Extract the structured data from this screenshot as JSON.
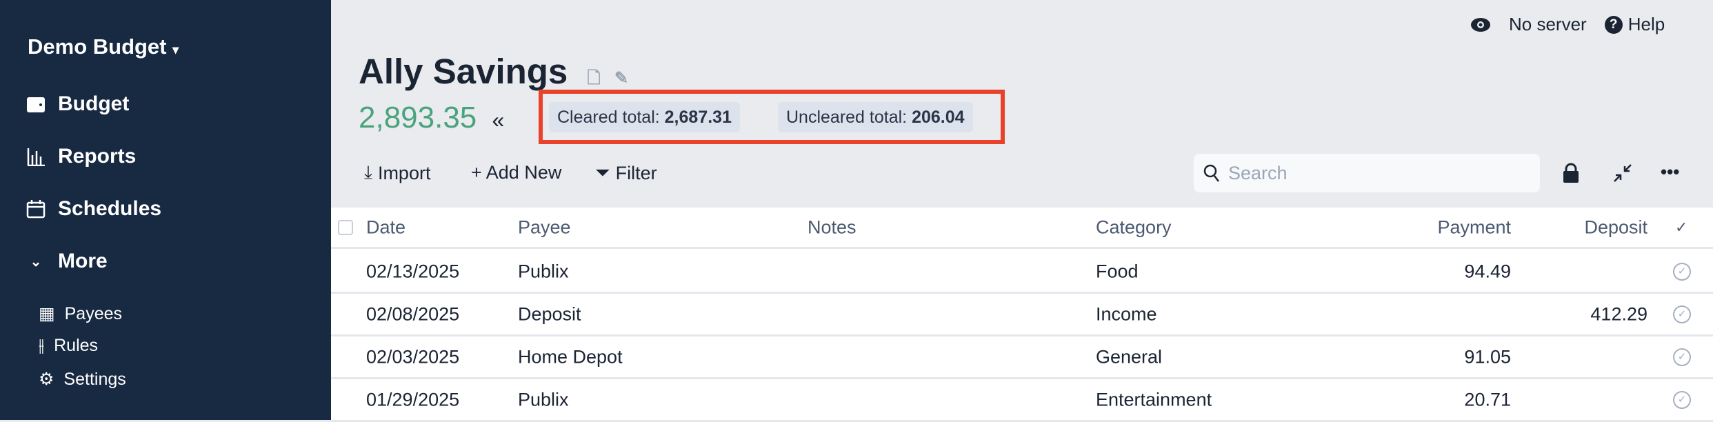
{
  "sidebar": {
    "budget_name": "Demo Budget",
    "items": [
      {
        "label": "Budget",
        "icon": "wallet-icon"
      },
      {
        "label": "Reports",
        "icon": "bar-chart-icon"
      },
      {
        "label": "Schedules",
        "icon": "calendar-icon"
      },
      {
        "label": "More",
        "icon": "chevron-down-icon"
      }
    ],
    "sub_items": [
      {
        "label": "Payees",
        "icon": "store-icon"
      },
      {
        "label": "Rules",
        "icon": "sliders-icon"
      },
      {
        "label": "Settings",
        "icon": "gear-icon"
      }
    ]
  },
  "topbar": {
    "server_status": "No server",
    "help": "Help"
  },
  "account": {
    "name": "Ally Savings",
    "balance": "2,893.35",
    "cleared_label": "Cleared total:",
    "cleared_value": "2,687.31",
    "uncleared_label": "Uncleared total:",
    "uncleared_value": "206.04",
    "balance_color": "#4aa37c",
    "highlight_color": "#e8432a"
  },
  "toolbar": {
    "import": "Import",
    "add_new": "+ Add New",
    "filter": "Filter",
    "search_placeholder": "Search"
  },
  "table": {
    "headers": {
      "date": "Date",
      "payee": "Payee",
      "notes": "Notes",
      "category": "Category",
      "payment": "Payment",
      "deposit": "Deposit",
      "cleared": "✓"
    },
    "rows": [
      {
        "date": "02/13/2025",
        "payee": "Publix",
        "notes": "",
        "category": "Food",
        "payment": "94.49",
        "deposit": ""
      },
      {
        "date": "02/08/2025",
        "payee": "Deposit",
        "notes": "",
        "category": "Income",
        "payment": "",
        "deposit": "412.29"
      },
      {
        "date": "02/03/2025",
        "payee": "Home Depot",
        "notes": "",
        "category": "General",
        "payment": "91.05",
        "deposit": ""
      },
      {
        "date": "01/29/2025",
        "payee": "Publix",
        "notes": "",
        "category": "Entertainment",
        "payment": "20.71",
        "deposit": ""
      }
    ]
  }
}
